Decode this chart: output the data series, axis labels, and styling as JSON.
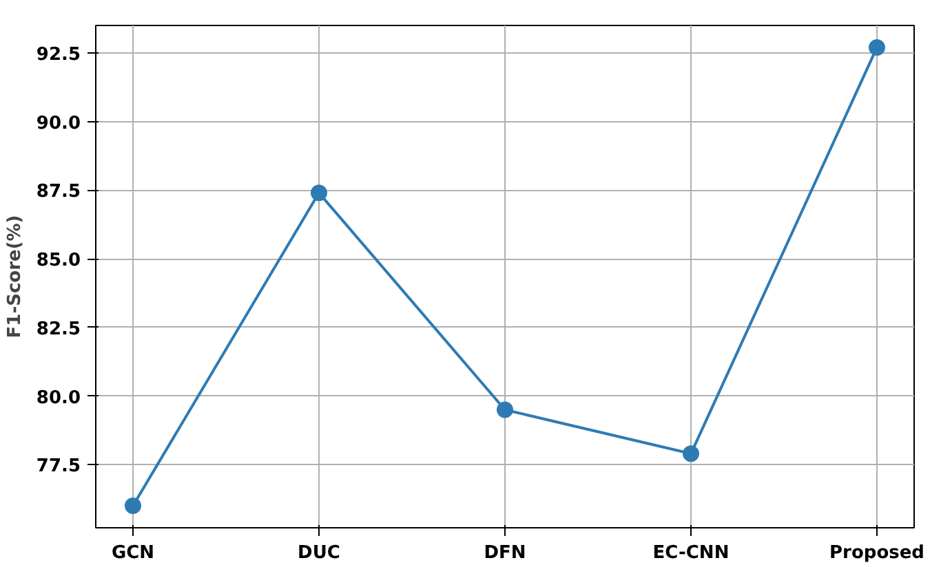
{
  "chart_data": {
    "type": "line",
    "ylabel": "F1-Score(%)",
    "categories": [
      "GCN",
      "DUC",
      "DFN",
      "EC-CNN",
      "Proposed"
    ],
    "series": [
      {
        "color": "#2e7bb4",
        "values": [
          76.0,
          87.4,
          79.5,
          77.9,
          92.7
        ]
      }
    ],
    "ylim": [
      75.2,
      93.5
    ],
    "yticks": [
      {
        "value": 77.5,
        "label": "77.5"
      },
      {
        "value": 80,
        "label": "80.0"
      },
      {
        "value": 82.5,
        "label": "82.5"
      },
      {
        "value": 85,
        "label": "85.0"
      },
      {
        "value": 87.5,
        "label": "87.5"
      },
      {
        "value": 90,
        "label": "90.0"
      },
      {
        "value": 92.5,
        "label": "92.5"
      }
    ],
    "grid": true,
    "marker": "circle",
    "line_style": "solid"
  }
}
